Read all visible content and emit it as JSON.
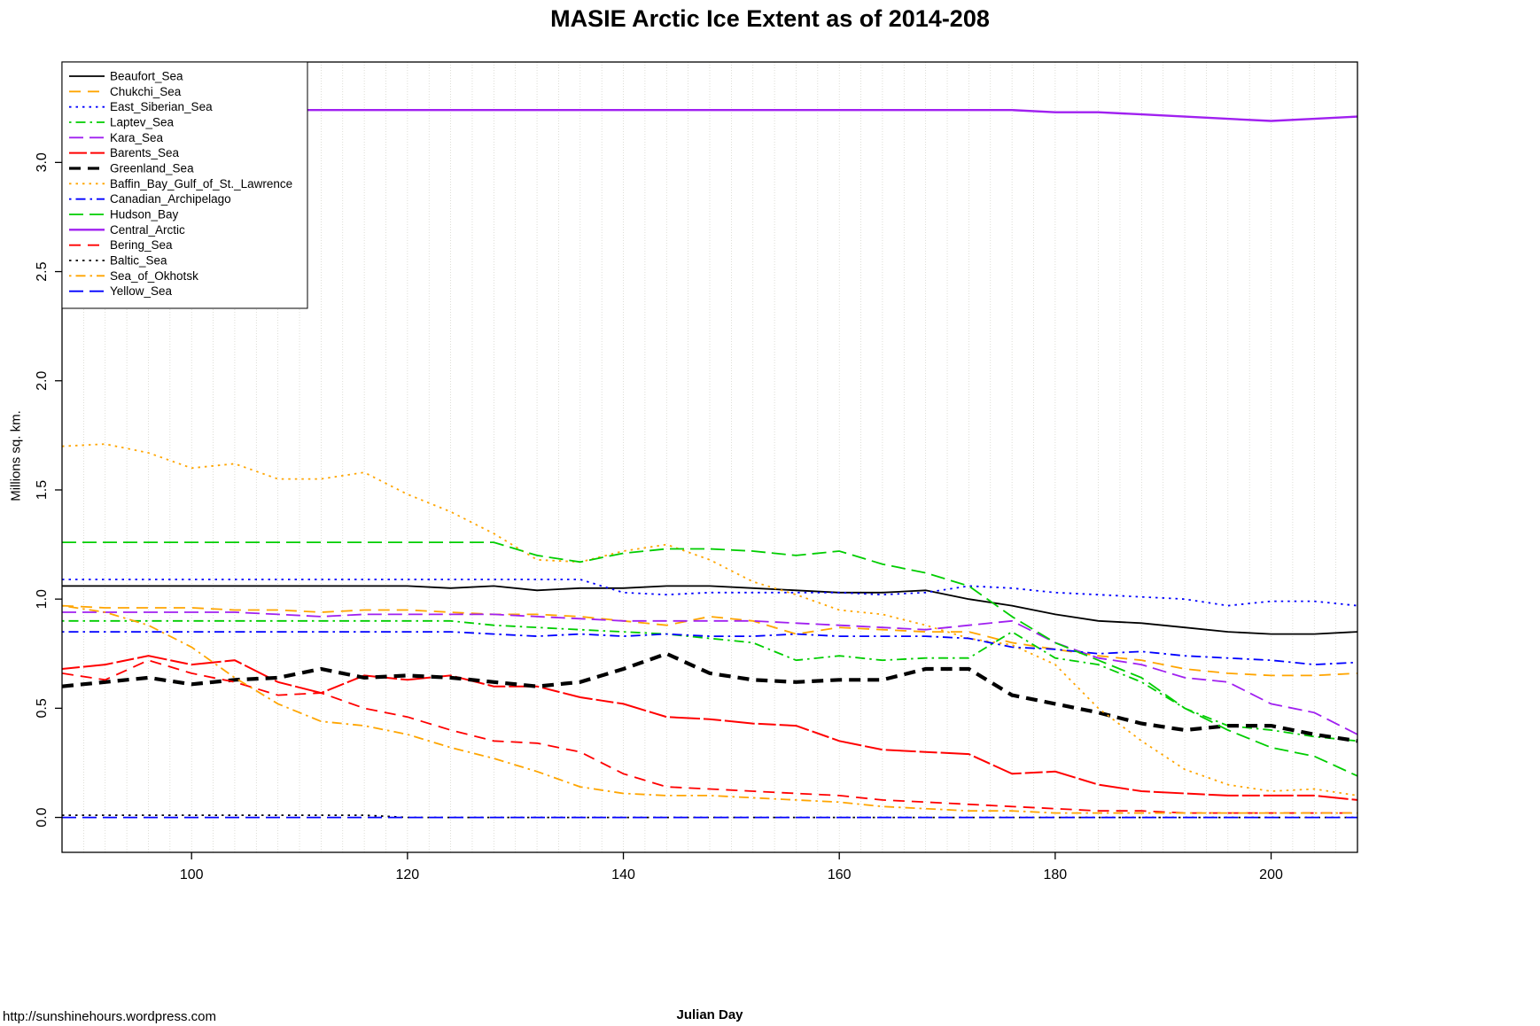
{
  "page": {
    "title": "MASIE Arctic Ice Extent as of 2014-208",
    "footer_url": "http://sunshinehours.wordpress.com"
  },
  "chart_data": {
    "type": "line",
    "title": "MASIE Arctic Ice Extent as of 2014-208",
    "xlabel": "Julian Day",
    "ylabel": "Millions sq. km.",
    "xlim": [
      88,
      208
    ],
    "ylim": [
      -0.16,
      3.46
    ],
    "xticks": [
      100,
      120,
      140,
      160,
      180,
      200
    ],
    "yticks": [
      0,
      0.5,
      1,
      1.5,
      2,
      2.5,
      3
    ],
    "grid": {
      "vertical_step": 2,
      "color": "#cfcfc6"
    },
    "legend_position": "top-left",
    "x": [
      88,
      92,
      96,
      100,
      104,
      108,
      112,
      116,
      120,
      124,
      128,
      132,
      136,
      140,
      144,
      148,
      152,
      156,
      160,
      164,
      168,
      172,
      176,
      180,
      184,
      188,
      192,
      196,
      200,
      204,
      208
    ],
    "series": [
      {
        "name": "Beaufort_Sea",
        "color": "#000000",
        "dash": "",
        "width": 1.8,
        "values": [
          1.06,
          1.06,
          1.06,
          1.06,
          1.06,
          1.06,
          1.06,
          1.06,
          1.06,
          1.05,
          1.06,
          1.04,
          1.05,
          1.05,
          1.06,
          1.06,
          1.05,
          1.04,
          1.03,
          1.03,
          1.04,
          1.0,
          0.97,
          0.93,
          0.9,
          0.89,
          0.87,
          0.85,
          0.84,
          0.84,
          0.85
        ]
      },
      {
        "name": "Chukchi_Sea",
        "color": "#FFA500",
        "dash": "13,8",
        "width": 1.8,
        "values": [
          0.97,
          0.96,
          0.96,
          0.96,
          0.95,
          0.95,
          0.94,
          0.95,
          0.95,
          0.94,
          0.93,
          0.93,
          0.92,
          0.9,
          0.88,
          0.92,
          0.9,
          0.84,
          0.87,
          0.86,
          0.85,
          0.85,
          0.8,
          0.77,
          0.74,
          0.72,
          0.68,
          0.66,
          0.65,
          0.65,
          0.66
        ]
      },
      {
        "name": "East_Siberian_Sea",
        "color": "#0000FF",
        "dash": "2.5,5",
        "width": 1.8,
        "values": [
          1.09,
          1.09,
          1.09,
          1.09,
          1.09,
          1.09,
          1.09,
          1.09,
          1.09,
          1.09,
          1.09,
          1.09,
          1.09,
          1.03,
          1.02,
          1.03,
          1.03,
          1.03,
          1.03,
          1.02,
          1.03,
          1.06,
          1.05,
          1.03,
          1.02,
          1.01,
          1.0,
          0.97,
          0.99,
          0.99,
          0.97
        ]
      },
      {
        "name": "Laptev_Sea",
        "color": "#00CD00",
        "dash": "2.5,5,11,5",
        "width": 1.8,
        "values": [
          0.9,
          0.9,
          0.9,
          0.9,
          0.9,
          0.9,
          0.9,
          0.9,
          0.9,
          0.9,
          0.88,
          0.87,
          0.86,
          0.85,
          0.84,
          0.82,
          0.8,
          0.72,
          0.74,
          0.72,
          0.73,
          0.73,
          0.85,
          0.73,
          0.7,
          0.62,
          0.5,
          0.42,
          0.4,
          0.37,
          0.35
        ]
      },
      {
        "name": "Kara_Sea",
        "color": "#A020F0",
        "dash": "16,7",
        "width": 1.8,
        "values": [
          0.94,
          0.94,
          0.94,
          0.94,
          0.94,
          0.93,
          0.92,
          0.93,
          0.93,
          0.93,
          0.93,
          0.92,
          0.91,
          0.9,
          0.9,
          0.9,
          0.9,
          0.89,
          0.88,
          0.87,
          0.86,
          0.88,
          0.9,
          0.8,
          0.73,
          0.7,
          0.64,
          0.62,
          0.52,
          0.48,
          0.38
        ]
      },
      {
        "name": "Barents_Sea",
        "color": "#FF0000",
        "dash": "20,4,34,4",
        "width": 2.0,
        "values": [
          0.68,
          0.7,
          0.74,
          0.7,
          0.72,
          0.62,
          0.57,
          0.65,
          0.63,
          0.65,
          0.6,
          0.6,
          0.55,
          0.52,
          0.46,
          0.45,
          0.43,
          0.42,
          0.35,
          0.31,
          0.3,
          0.29,
          0.2,
          0.21,
          0.15,
          0.12,
          0.11,
          0.1,
          0.1,
          0.1,
          0.08
        ]
      },
      {
        "name": "Greenland_Sea",
        "color": "#000000",
        "dash": "13,8",
        "width": 4.2,
        "values": [
          0.6,
          0.62,
          0.64,
          0.61,
          0.63,
          0.64,
          0.68,
          0.64,
          0.65,
          0.64,
          0.62,
          0.6,
          0.62,
          0.68,
          0.75,
          0.66,
          0.63,
          0.62,
          0.63,
          0.63,
          0.68,
          0.68,
          0.56,
          0.52,
          0.48,
          0.43,
          0.4,
          0.42,
          0.42,
          0.38,
          0.35
        ]
      },
      {
        "name": "Baffin_Bay_Gulf_of_St._Lawrence",
        "color": "#FFA500",
        "dash": "2.5,5",
        "width": 1.8,
        "values": [
          1.7,
          1.71,
          1.67,
          1.6,
          1.62,
          1.55,
          1.55,
          1.58,
          1.48,
          1.4,
          1.3,
          1.18,
          1.17,
          1.22,
          1.25,
          1.18,
          1.08,
          1.02,
          0.95,
          0.93,
          0.88,
          0.82,
          0.79,
          0.7,
          0.5,
          0.35,
          0.22,
          0.15,
          0.12,
          0.13,
          0.1
        ]
      },
      {
        "name": "Canadian_Archipelago",
        "color": "#0000FF",
        "dash": "2.5,5,11,5",
        "width": 1.8,
        "values": [
          0.85,
          0.85,
          0.85,
          0.85,
          0.85,
          0.85,
          0.85,
          0.85,
          0.85,
          0.85,
          0.84,
          0.83,
          0.84,
          0.83,
          0.84,
          0.83,
          0.83,
          0.84,
          0.83,
          0.83,
          0.83,
          0.82,
          0.78,
          0.77,
          0.75,
          0.76,
          0.74,
          0.73,
          0.72,
          0.7,
          0.71
        ]
      },
      {
        "name": "Hudson_Bay",
        "color": "#00CD00",
        "dash": "16,7",
        "width": 1.8,
        "values": [
          1.26,
          1.26,
          1.26,
          1.26,
          1.26,
          1.26,
          1.26,
          1.26,
          1.26,
          1.26,
          1.26,
          1.2,
          1.17,
          1.21,
          1.23,
          1.23,
          1.22,
          1.2,
          1.22,
          1.16,
          1.12,
          1.06,
          0.92,
          0.8,
          0.72,
          0.64,
          0.5,
          0.4,
          0.32,
          0.28,
          0.19
        ]
      },
      {
        "name": "Central_Arctic",
        "color": "#A020F0",
        "dash": "",
        "width": 2.4,
        "values": [
          3.23,
          3.23,
          3.23,
          3.24,
          3.24,
          3.24,
          3.24,
          3.24,
          3.24,
          3.24,
          3.24,
          3.24,
          3.24,
          3.24,
          3.24,
          3.24,
          3.24,
          3.24,
          3.24,
          3.24,
          3.24,
          3.24,
          3.24,
          3.23,
          3.23,
          3.22,
          3.21,
          3.2,
          3.19,
          3.2,
          3.21
        ]
      },
      {
        "name": "Bering_Sea",
        "color": "#FF0000",
        "dash": "13,8",
        "width": 1.8,
        "values": [
          0.66,
          0.63,
          0.72,
          0.66,
          0.62,
          0.56,
          0.57,
          0.5,
          0.46,
          0.4,
          0.35,
          0.34,
          0.3,
          0.2,
          0.14,
          0.13,
          0.12,
          0.11,
          0.1,
          0.08,
          0.07,
          0.06,
          0.05,
          0.04,
          0.03,
          0.03,
          0.02,
          0.02,
          0.02,
          0.02,
          0.02
        ]
      },
      {
        "name": "Baltic_Sea",
        "color": "#000000",
        "dash": "2.5,5",
        "width": 1.8,
        "values": [
          0.01,
          0.01,
          0.01,
          0.01,
          0.01,
          0.01,
          0.01,
          0.01,
          0.0,
          0.0,
          0.0,
          0.0,
          0.0,
          0.0,
          0.0,
          0.0,
          0.0,
          0.0,
          0.0,
          0.0,
          0.0,
          0.0,
          0.0,
          0.0,
          0.0,
          0.0,
          0.0,
          0.0,
          0.0,
          0.0,
          0.0
        ]
      },
      {
        "name": "Sea_of_Okhotsk",
        "color": "#FFA500",
        "dash": "2.5,5,11,5",
        "width": 1.8,
        "values": [
          0.97,
          0.94,
          0.88,
          0.78,
          0.64,
          0.52,
          0.44,
          0.42,
          0.38,
          0.32,
          0.27,
          0.21,
          0.14,
          0.11,
          0.1,
          0.1,
          0.09,
          0.08,
          0.07,
          0.05,
          0.04,
          0.03,
          0.03,
          0.02,
          0.02,
          0.02,
          0.02,
          0.02,
          0.02,
          0.02,
          0.02
        ]
      },
      {
        "name": "Yellow_Sea",
        "color": "#0000FF",
        "dash": "16,7",
        "width": 1.8,
        "values": [
          0.0,
          0.0,
          0.0,
          0.0,
          0.0,
          0.0,
          0.0,
          0.0,
          0.0,
          0.0,
          0.0,
          0.0,
          0.0,
          0.0,
          0.0,
          0.0,
          0.0,
          0.0,
          0.0,
          0.0,
          0.0,
          0.0,
          0.0,
          0.0,
          0.0,
          0.0,
          0.0,
          0.0,
          0.0,
          0.0,
          0.0
        ]
      }
    ]
  }
}
